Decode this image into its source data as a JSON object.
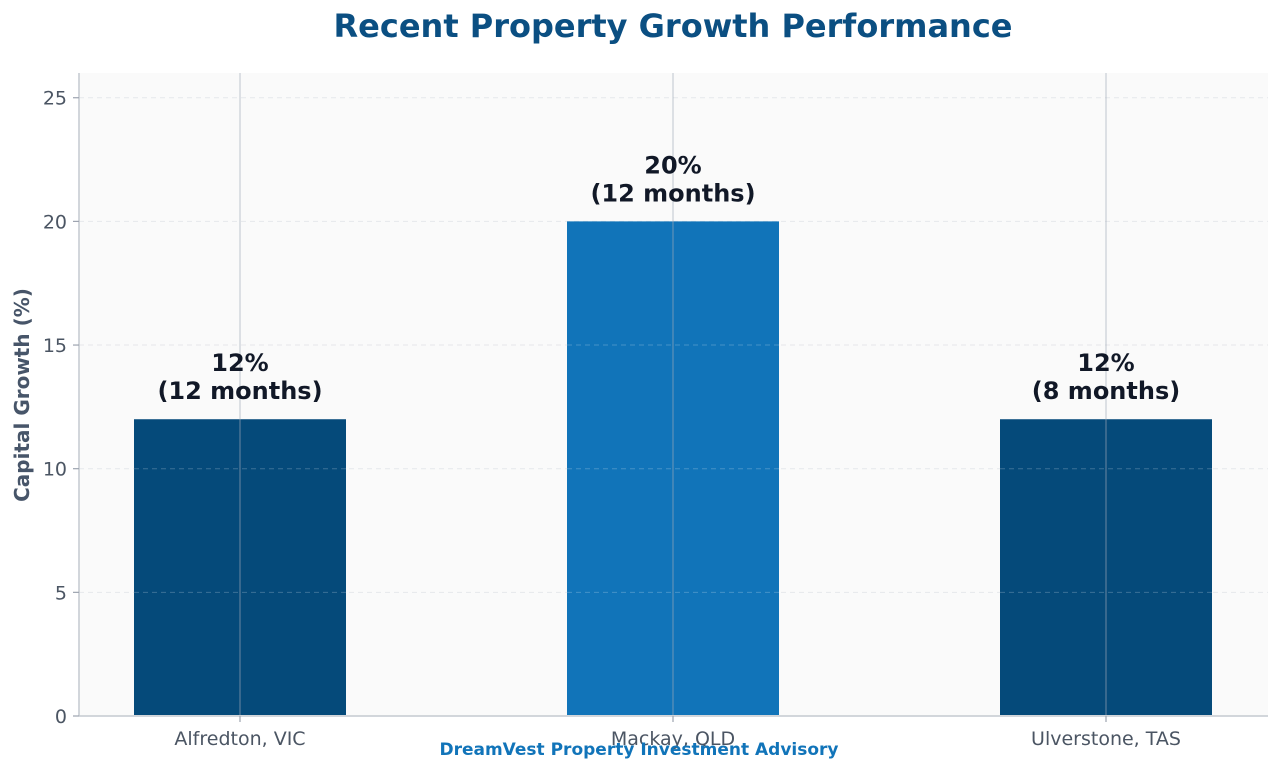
{
  "chart_data": {
    "type": "bar",
    "title": "Recent Property Growth Performance",
    "xlabel": "",
    "ylabel": "Capital Growth (%)",
    "ylim": [
      0,
      26
    ],
    "yticks": [
      0,
      5,
      10,
      15,
      20,
      25
    ],
    "categories": [
      "Alfredton, VIC",
      "Mackay, QLD",
      "Ulverstone, TAS"
    ],
    "values": [
      12,
      20,
      12
    ],
    "periods": [
      "(12 months)",
      "(12 months)",
      "(8 months)"
    ],
    "value_labels": [
      "12%",
      "20%",
      "12%"
    ],
    "bar_colors": [
      "#054a7a",
      "#1174b9",
      "#054a7a"
    ],
    "grid": "horizontal dashed",
    "legend": "none"
  },
  "footer": {
    "text": "DreamVest Property Investment Advisory",
    "color": "#1174b9"
  }
}
